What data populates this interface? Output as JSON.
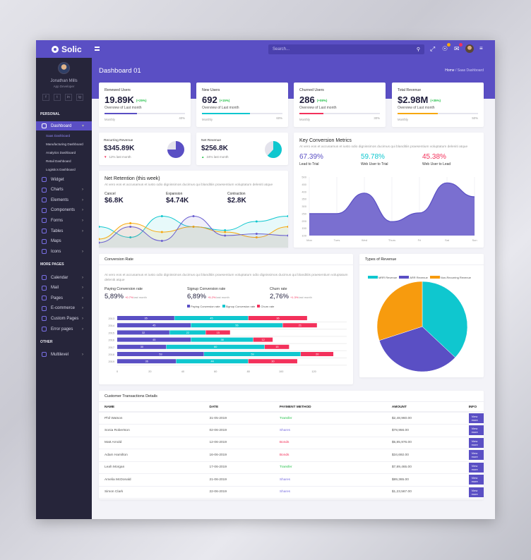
{
  "app": {
    "brand": "Solic",
    "search_placeholder": "Search...",
    "icons": [
      "menu-icon",
      "search-icon",
      "fullscreen-icon",
      "bell-icon",
      "mail-icon",
      "settings-menu-icon"
    ]
  },
  "user": {
    "name": "Jonathan Mills",
    "role": "App Developer",
    "socials": [
      "f",
      "t",
      "in",
      "ig"
    ]
  },
  "sidebar": {
    "sections": {
      "personal": "PERSONAL",
      "more": "MORE PAGES",
      "other": "OTHER"
    },
    "dashboard": "Dashboard",
    "subitems": [
      "Saas Dashboard",
      "Manufacturing Dashboard",
      "Analytics Dashboard",
      "Retail Dashboard",
      "Logistics Dashboard"
    ],
    "personal": [
      {
        "label": "Widget",
        "chev": false
      },
      {
        "label": "Charts",
        "chev": true
      },
      {
        "label": "Elements",
        "chev": true
      },
      {
        "label": "Components",
        "chev": true
      },
      {
        "label": "Forms",
        "chev": true
      },
      {
        "label": "Tables",
        "chev": true
      },
      {
        "label": "Maps",
        "chev": false
      },
      {
        "label": "Icons",
        "chev": true
      }
    ],
    "more": [
      {
        "label": "Calendar",
        "chev": true
      },
      {
        "label": "Mail",
        "chev": true
      },
      {
        "label": "Pages",
        "chev": true
      },
      {
        "label": "E-commerce",
        "chev": true
      },
      {
        "label": "Custom Pages",
        "chev": true
      },
      {
        "label": "Error pages",
        "chev": true
      }
    ],
    "other": [
      {
        "label": "Multilevel",
        "chev": true
      }
    ]
  },
  "page": {
    "title": "Dashboard 01",
    "breadcrumb_home": "Home",
    "breadcrumb_sep": "/",
    "breadcrumb_current": "Saas Dashboard"
  },
  "stats": [
    {
      "label": "Renewed Users",
      "value": "19.89K",
      "change": "(+25%)",
      "sub": "Overview of Last month",
      "foot": "Monthly",
      "pct": "40%",
      "progress": 40,
      "color": "#5a4fc4"
    },
    {
      "label": "New Users",
      "value": "692",
      "change": "(+15%)",
      "sub": "Overview of Last month",
      "foot": "Monthly",
      "pct": "60%",
      "progress": 60,
      "color": "#0fc7cf"
    },
    {
      "label": "Churned Users",
      "value": "286",
      "change": "(+08%)",
      "sub": "Overview of Last month",
      "foot": "Monthly",
      "pct": "30%",
      "progress": 30,
      "color": "#f3315b"
    },
    {
      "label": "Total Revenue",
      "value": "$2.98M",
      "change": "(+35%)",
      "sub": "Overview of Last month",
      "foot": "Monthly",
      "pct": "50%",
      "progress": 50,
      "color": "#f7a80e"
    }
  ],
  "small": [
    {
      "label": "Recurring Revenue",
      "value": "$345.89K",
      "sub": "12% last month",
      "trend": "down",
      "fraction": 0.75,
      "color": "#5a4fc4"
    },
    {
      "label": "Net Revenue",
      "value": "$256.8K",
      "sub": "24% last month",
      "trend": "up",
      "fraction": 0.62,
      "color": "#0fc7cf"
    }
  ],
  "retention": {
    "title": "Net Retention (this week)",
    "desc": "At vero eos et accusamus et iusto odio dignissimos ducimus qui blanditiis praesentium voluptatum deleniti atque",
    "metrics": [
      {
        "label": "Cancel",
        "value": "$6.8K"
      },
      {
        "label": "Expansion",
        "value": "$4.74K"
      },
      {
        "label": "Contraction",
        "value": "$2.8K"
      }
    ]
  },
  "conversion_metrics": {
    "title": "Key Conversion Metrics",
    "desc": "At vero eos et accusamus et iusto odio dignissimos ducimus qui blanditiis praesentium voluptatum deleniti atque",
    "metrics": [
      {
        "value": "67.39%",
        "label": "Lead to Trial",
        "color": "#5a4fc4"
      },
      {
        "value": "59.78%",
        "label": "Web User to Trial",
        "color": "#0fc7cf"
      },
      {
        "value": "45.38%",
        "label": "Web User to Lead",
        "color": "#f3315b"
      }
    ]
  },
  "conversion_rate": {
    "title": "Conversion Rate",
    "desc": "At vero eos et accusamus et iusto odio dignissimos ducimus qui blanditiis praesentium voluptatum odio dignissimos ducimus qui blanditiis praesentium voluptatum deleniti atque",
    "metrics": [
      {
        "label": "Paying Conversion rate",
        "value": "5,89%",
        "change": "+0.7%",
        "suffix": "last month"
      },
      {
        "label": "Signup Conversion rate",
        "value": "6,89%",
        "change": "+5.2%",
        "suffix": "last month"
      },
      {
        "label": "Churn rate",
        "value": "2,76%",
        "change": "+1.3%",
        "suffix": "last month"
      }
    ]
  },
  "revenue_types": {
    "title": "Types of Revenue"
  },
  "transactions": {
    "title": "Customer Transactions Details",
    "columns": [
      "NAME",
      "DATE",
      "PAYMENT METHOD",
      "AMOUNT",
      "INFO"
    ],
    "button": "View more",
    "rows": [
      [
        "Phil Watson",
        "31-05-2019",
        "Transfer",
        "$2,48,960.00"
      ],
      [
        "Sonia Robertson",
        "02-06-2019",
        "Shares",
        "$78,956.00"
      ],
      [
        "Matt Arnold",
        "12-06-2019",
        "Bonds",
        "$5,85,976.00"
      ],
      [
        "Adam Hamilton",
        "16-06-2019",
        "Bonds",
        "$34,692.00"
      ],
      [
        "Leah Morgan",
        "17-06-2019",
        "Transfer",
        "$7,89,465.00"
      ],
      [
        "Amelia McDonald",
        "21-06-2019",
        "Shares",
        "$89,365.00"
      ],
      [
        "Simon Clark",
        "22-06-2019",
        "Shares",
        "$1,23,567.00"
      ]
    ],
    "method_colors": {
      "Transfer": "#27c24c",
      "Shares": "#7a6fe0",
      "Bonds": "#f3315b"
    }
  },
  "chart_data": [
    {
      "type": "area",
      "title": "Net Retention (this week)",
      "x": [
        0,
        1,
        2,
        3,
        4,
        5,
        6
      ],
      "series": [
        {
          "name": "Series A",
          "color": "#0fc7cf",
          "values": [
            55,
            25,
            85,
            55,
            45,
            70,
            85
          ]
        },
        {
          "name": "Series B",
          "color": "#f7a80e",
          "values": [
            20,
            65,
            40,
            55,
            40,
            25,
            55
          ]
        },
        {
          "name": "Series C",
          "color": "#6a5fd0",
          "values": [
            10,
            55,
            15,
            85,
            30,
            35,
            30
          ]
        }
      ],
      "ylim": [
        0,
        100
      ]
    },
    {
      "type": "area",
      "title": "Key Conversion Metrics",
      "categories": [
        "Mon",
        "Tues",
        "Wed",
        "Thurs",
        "Fri",
        "Sat",
        "Sun"
      ],
      "values": [
        250,
        250,
        390,
        195,
        255,
        460,
        365
      ],
      "ylim": [
        100,
        500
      ],
      "yticks": [
        100,
        150,
        200,
        250,
        300,
        350,
        400,
        450,
        500
      ],
      "color": "#5a4fc4"
    },
    {
      "type": "bar",
      "orientation": "horizontal",
      "stacked": true,
      "title": "Conversion Rate",
      "categories": [
        "2013",
        "2014",
        "2015",
        "2016",
        "2017",
        "2018",
        "2019"
      ],
      "series": [
        {
          "name": "Paying Conversion rate",
          "color": "#5a4fc4",
          "values": [
            35,
            45,
            32,
            45,
            30,
            53,
            36
          ]
        },
        {
          "name": "Signup Conversion rate",
          "color": "#0fc7cf",
          "values": [
            45,
            56,
            22,
            38,
            60,
            59,
            44
          ]
        },
        {
          "name": "Churn rate",
          "color": "#f3315b",
          "values": [
            36,
            21,
            15,
            12,
            15,
            20,
            30
          ]
        }
      ],
      "xlim": [
        0,
        140
      ],
      "xticks": [
        0,
        20,
        40,
        60,
        80,
        100,
        120
      ],
      "legend": "top"
    },
    {
      "type": "pie",
      "title": "Types of Revenue",
      "labels": [
        "MRR Revenue",
        "ARR Revenue",
        "Non-Recurring Revenue"
      ],
      "values": [
        37,
        33,
        30
      ],
      "colors": [
        "#0fc7cf",
        "#5a4fc4",
        "#f79b0e"
      ],
      "legend": "top"
    }
  ]
}
